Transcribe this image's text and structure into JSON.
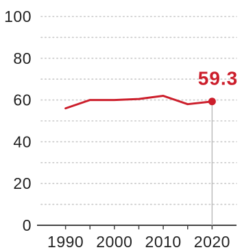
{
  "chart_data": {
    "type": "line",
    "x": [
      1990,
      1995,
      2000,
      2005,
      2010,
      2015,
      2020
    ],
    "series": [
      {
        "values": [
          56,
          60,
          60,
          60.5,
          62,
          58,
          59.3
        ]
      }
    ],
    "ylim": [
      0,
      100
    ],
    "xlim": [
      1985,
      2025
    ],
    "yticks": [
      "0",
      "20",
      "40",
      "60",
      "80",
      "100"
    ],
    "xticks": [
      "1990",
      "2000",
      "2010",
      "2020"
    ],
    "end_label": "59.3",
    "grid": true,
    "colors": {
      "line": "#cc1e2b",
      "grid": "#c8c8c8",
      "axis": "#444444",
      "drop_line": "#b8b8b8"
    }
  }
}
